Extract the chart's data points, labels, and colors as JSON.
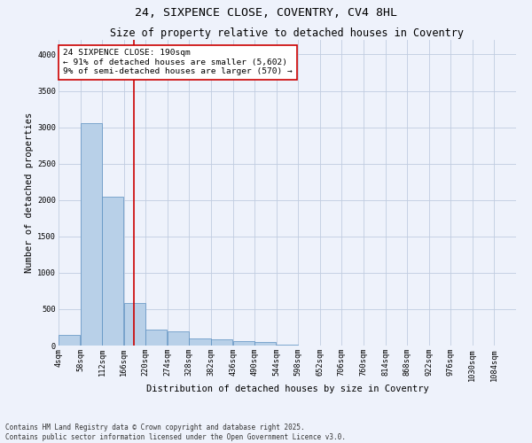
{
  "title1": "24, SIXPENCE CLOSE, COVENTRY, CV4 8HL",
  "title2": "Size of property relative to detached houses in Coventry",
  "xlabel": "Distribution of detached houses by size in Coventry",
  "ylabel": "Number of detached properties",
  "bin_starts": [
    4,
    58,
    112,
    166,
    220,
    274,
    328,
    382,
    436,
    490,
    544,
    598,
    652,
    706,
    760,
    814,
    868,
    922,
    976,
    1030,
    1084
  ],
  "bin_width": 54,
  "bar_heights": [
    150,
    3050,
    2050,
    580,
    220,
    200,
    100,
    80,
    60,
    50,
    10,
    5,
    3,
    2,
    1,
    1,
    0,
    0,
    0,
    0,
    0
  ],
  "bar_color": "#b8d0e8",
  "bar_edge_color": "#5a8fc0",
  "property_size": 190,
  "red_line_color": "#cc0000",
  "annotation_text": "24 SIXPENCE CLOSE: 190sqm\n← 91% of detached houses are smaller (5,602)\n9% of semi-detached houses are larger (570) →",
  "annotation_box_color": "#ffffff",
  "annotation_box_edge": "#cc0000",
  "ylim": [
    0,
    4200
  ],
  "yticks": [
    0,
    500,
    1000,
    1500,
    2000,
    2500,
    3000,
    3500,
    4000
  ],
  "background_color": "#eef2fb",
  "footer_text": "Contains HM Land Registry data © Crown copyright and database right 2025.\nContains public sector information licensed under the Open Government Licence v3.0.",
  "title_fontsize": 9.5,
  "subtitle_fontsize": 8.5,
  "tick_fontsize": 6.2,
  "label_fontsize": 7.5,
  "annot_fontsize": 6.8,
  "footer_fontsize": 5.5
}
